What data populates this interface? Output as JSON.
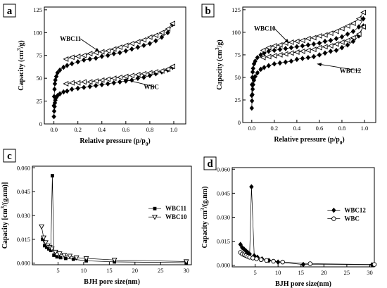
{
  "chart_data": [
    {
      "panel": "a",
      "type": "scatter",
      "xlabel": "Relative pressure (p/p0)",
      "ylabel": "Capacity (cm3/g)",
      "xlim": [
        -0.08,
        1.1
      ],
      "ylim": [
        0,
        128
      ],
      "xticks": [
        0.0,
        0.2,
        0.4,
        0.6,
        0.8,
        1.0
      ],
      "xtick_labels": [
        "0.0",
        "0.2",
        "0.4",
        "0.6",
        "0.8",
        "1.0"
      ],
      "yticks": [
        0,
        25,
        50,
        75,
        100,
        125
      ],
      "ytick_labels": [
        "0",
        "25",
        "50",
        "75",
        "100",
        "125"
      ],
      "annotations": [
        {
          "text": "WBC11",
          "x": 0.05,
          "y": 91,
          "ax": 0.38,
          "ay": 79
        },
        {
          "text": "WBC",
          "x": 0.75,
          "y": 38,
          "ax": 0.58,
          "ay": 49
        }
      ],
      "series": [
        {
          "name": "WBC11",
          "branch": "adsorption",
          "marker": "diamond-filled",
          "x": [
            0.0,
            0.002,
            0.005,
            0.008,
            0.012,
            0.02,
            0.03,
            0.05,
            0.08,
            0.11,
            0.15,
            0.2,
            0.25,
            0.3,
            0.35,
            0.4,
            0.45,
            0.5,
            0.55,
            0.6,
            0.65,
            0.7,
            0.75,
            0.8,
            0.85,
            0.9,
            0.95,
            0.99
          ],
          "y": [
            20,
            30,
            38,
            44,
            48,
            52,
            56,
            59,
            62,
            64,
            66,
            68,
            70,
            71,
            72,
            74,
            75,
            77,
            78,
            80,
            82,
            84,
            86,
            88,
            91,
            95,
            100,
            109
          ]
        },
        {
          "name": "WBC11",
          "branch": "desorption",
          "marker": "triangle-left-open",
          "x": [
            0.99,
            0.95,
            0.9,
            0.85,
            0.8,
            0.75,
            0.7,
            0.65,
            0.6,
            0.55,
            0.5,
            0.45,
            0.4,
            0.35,
            0.3,
            0.25,
            0.2,
            0.15,
            0.1
          ],
          "y": [
            110,
            104,
            100,
            97,
            95,
            92,
            90,
            88,
            86,
            84,
            82,
            80,
            79,
            78,
            77,
            75,
            74,
            73,
            71
          ]
        },
        {
          "name": "WBC",
          "branch": "adsorption",
          "marker": "diamond-filled",
          "x": [
            0.0,
            0.002,
            0.005,
            0.008,
            0.012,
            0.02,
            0.03,
            0.05,
            0.08,
            0.11,
            0.15,
            0.2,
            0.25,
            0.3,
            0.35,
            0.4,
            0.45,
            0.5,
            0.55,
            0.6,
            0.65,
            0.7,
            0.75,
            0.8,
            0.85,
            0.9,
            0.95,
            0.99
          ],
          "y": [
            8,
            14,
            19,
            23,
            26,
            29,
            31,
            33,
            35,
            36,
            38,
            39,
            40,
            41,
            42,
            43,
            44,
            45,
            46,
            47,
            48,
            50,
            51,
            53,
            55,
            57,
            59,
            62
          ]
        },
        {
          "name": "WBC",
          "branch": "desorption",
          "marker": "triangle-left-open",
          "x": [
            0.99,
            0.95,
            0.9,
            0.85,
            0.8,
            0.75,
            0.7,
            0.65,
            0.6,
            0.55,
            0.5,
            0.45,
            0.4,
            0.35,
            0.3,
            0.25,
            0.2,
            0.15,
            0.1
          ],
          "y": [
            63,
            60,
            58,
            57,
            56,
            55,
            54,
            53,
            52,
            51,
            50,
            49,
            48,
            47,
            46,
            46,
            45,
            45,
            44
          ]
        }
      ]
    },
    {
      "panel": "b",
      "type": "scatter",
      "xlabel": "Relative pressure (p/p0)",
      "ylabel": "Capacity (cm3/g)",
      "xlim": [
        -0.08,
        1.1
      ],
      "ylim": [
        0,
        128
      ],
      "xticks": [
        0.0,
        0.2,
        0.4,
        0.6,
        0.8,
        1.0
      ],
      "xtick_labels": [
        "0.0",
        "0.2",
        "0.4",
        "0.6",
        "0.8",
        "1.0"
      ],
      "yticks": [
        0,
        25,
        50,
        75,
        100,
        125
      ],
      "ytick_labels": [
        "0",
        "25",
        "50",
        "75",
        "100",
        "125"
      ],
      "annotations": [
        {
          "text": "WBC10",
          "x": 0.02,
          "y": 102,
          "ax": 0.33,
          "ay": 88
        },
        {
          "text": "WBC12",
          "x": 0.78,
          "y": 55,
          "ax": 0.58,
          "ay": 65
        }
      ],
      "series": [
        {
          "name": "WBC10",
          "branch": "adsorption",
          "marker": "diamond-filled",
          "x": [
            0.0,
            0.002,
            0.005,
            0.008,
            0.012,
            0.02,
            0.03,
            0.05,
            0.08,
            0.11,
            0.15,
            0.2,
            0.25,
            0.3,
            0.35,
            0.4,
            0.45,
            0.5,
            0.55,
            0.6,
            0.65,
            0.7,
            0.75,
            0.8,
            0.85,
            0.9,
            0.95,
            0.99
          ],
          "y": [
            30,
            42,
            50,
            56,
            60,
            65,
            68,
            72,
            75,
            77,
            79,
            80,
            81,
            82,
            83,
            84,
            85,
            86,
            87,
            88,
            90,
            91,
            93,
            95,
            98,
            101,
            106,
            115
          ]
        },
        {
          "name": "WBC10",
          "branch": "desorption",
          "marker": "triangle-left-open",
          "x": [
            0.99,
            0.95,
            0.9,
            0.85,
            0.8,
            0.75,
            0.7,
            0.65,
            0.6,
            0.55,
            0.5,
            0.45,
            0.4,
            0.35,
            0.3,
            0.25,
            0.2,
            0.15,
            0.1
          ],
          "y": [
            122,
            115,
            110,
            107,
            104,
            101,
            99,
            97,
            96,
            94,
            93,
            91,
            90,
            89,
            88,
            86,
            85,
            83,
            80
          ]
        },
        {
          "name": "WBC12",
          "branch": "adsorption",
          "marker": "diamond-filled",
          "x": [
            0.0,
            0.002,
            0.005,
            0.008,
            0.012,
            0.02,
            0.03,
            0.05,
            0.08,
            0.11,
            0.15,
            0.2,
            0.25,
            0.3,
            0.35,
            0.4,
            0.45,
            0.5,
            0.55,
            0.6,
            0.65,
            0.7,
            0.75,
            0.8,
            0.85,
            0.9,
            0.95,
            0.99
          ],
          "y": [
            16,
            24,
            31,
            37,
            42,
            47,
            51,
            55,
            59,
            61,
            63,
            65,
            66,
            67,
            68,
            70,
            71,
            72,
            73,
            75,
            77,
            79,
            80,
            83,
            86,
            90,
            96,
            107
          ]
        },
        {
          "name": "WBC12",
          "branch": "desorption",
          "marker": "triangle-left-open",
          "x": [
            0.99,
            0.95,
            0.9,
            0.85,
            0.8,
            0.75,
            0.7,
            0.65,
            0.6,
            0.55,
            0.5,
            0.45,
            0.4,
            0.35,
            0.3,
            0.25,
            0.2,
            0.15,
            0.1
          ],
          "y": [
            106,
            98,
            94,
            91,
            89,
            87,
            85,
            84,
            83,
            81,
            80,
            79,
            78,
            77,
            76,
            75,
            74,
            73,
            72
          ]
        }
      ]
    },
    {
      "panel": "c",
      "type": "line",
      "xlabel": "BJH pore size(nm)",
      "ylabel": "Capacity [cm3/(g.nm)]",
      "xlim": [
        0,
        31
      ],
      "ylim": [
        -0.001,
        0.061
      ],
      "xticks": [
        5,
        10,
        15,
        20,
        25,
        30
      ],
      "xtick_labels": [
        "5",
        "10",
        "15",
        "20",
        "25",
        "30"
      ],
      "yticks": [
        0.0,
        0.015,
        0.03,
        0.045,
        0.06
      ],
      "ytick_labels": [
        "0.000",
        "0.015",
        "0.030",
        "0.045",
        "0.060"
      ],
      "legend_position": "right",
      "series": [
        {
          "name": "WBC11",
          "marker": "square-filled",
          "x": [
            2.0,
            2.4,
            2.8,
            3.2,
            3.6,
            3.9,
            4.2,
            4.8,
            5.5,
            6.5,
            8.0,
            10.5,
            16.0,
            30.0
          ],
          "y": [
            0.015,
            0.011,
            0.01,
            0.009,
            0.008,
            0.055,
            0.005,
            0.004,
            0.0035,
            0.003,
            0.0025,
            0.0015,
            0.0008,
            0.0003
          ]
        },
        {
          "name": "WBC10",
          "marker": "triangle-down-open",
          "x": [
            1.8,
            2.2,
            2.6,
            3.0,
            3.4,
            3.8,
            4.5,
            5.3,
            6.2,
            7.3,
            8.6,
            10.5,
            16.0,
            30.0
          ],
          "y": [
            0.023,
            0.016,
            0.013,
            0.011,
            0.01,
            0.009,
            0.007,
            0.006,
            0.005,
            0.0045,
            0.0035,
            0.003,
            0.002,
            0.001
          ]
        }
      ]
    },
    {
      "panel": "d",
      "type": "line",
      "xlabel": "BJH pore size(nm)",
      "ylabel": "Capacity cm3/(g.nm)",
      "xlim": [
        0,
        31
      ],
      "ylim": [
        -0.001,
        0.061
      ],
      "xticks": [
        5,
        10,
        15,
        20,
        25,
        30
      ],
      "xtick_labels": [
        "5",
        "10",
        "15",
        "20",
        "25",
        "30"
      ],
      "yticks": [
        0.0,
        0.015,
        0.03,
        0.045,
        0.06
      ],
      "ytick_labels": [
        "0.000",
        "0.015",
        "0.030",
        "0.045",
        "0.060"
      ],
      "legend_position": "right",
      "series": [
        {
          "name": "WBC12",
          "marker": "diamond-filled",
          "x": [
            1.8,
            2.2,
            2.6,
            3.0,
            3.4,
            3.8,
            4.2,
            4.8,
            5.5,
            6.5,
            8.0,
            10.0,
            15.5,
            30.5
          ],
          "y": [
            0.013,
            0.011,
            0.01,
            0.009,
            0.008,
            0.007,
            0.049,
            0.006,
            0.005,
            0.004,
            0.003,
            0.002,
            0.0005,
            0.0003
          ]
        },
        {
          "name": "WBC",
          "marker": "circle-open",
          "x": [
            1.8,
            2.2,
            2.6,
            3.0,
            3.4,
            3.8,
            4.5,
            5.3,
            6.3,
            7.5,
            9.0,
            11.0,
            17.0,
            31.0
          ],
          "y": [
            0.008,
            0.007,
            0.0065,
            0.006,
            0.0055,
            0.005,
            0.0045,
            0.004,
            0.0035,
            0.003,
            0.0025,
            0.002,
            0.001,
            0.0005
          ]
        }
      ]
    }
  ]
}
